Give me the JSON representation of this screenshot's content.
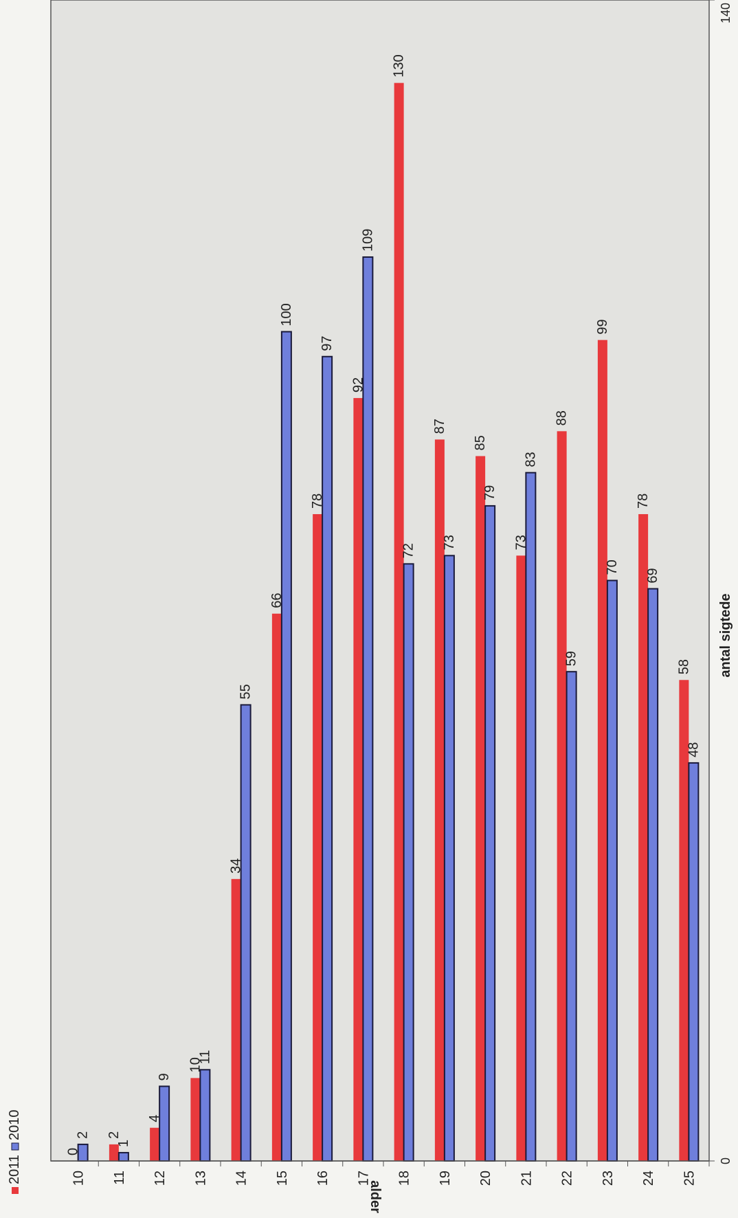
{
  "chart_data": {
    "type": "bar",
    "orientation": "horizontal",
    "categories": [
      "10",
      "11",
      "12",
      "13",
      "14",
      "15",
      "16",
      "17",
      "18",
      "19",
      "20",
      "21",
      "22",
      "23",
      "24",
      "25"
    ],
    "series": [
      {
        "name": "2011",
        "color": "#e8393c",
        "values": [
          0,
          2,
          4,
          10,
          34,
          66,
          78,
          92,
          130,
          87,
          85,
          73,
          88,
          99,
          78,
          58
        ]
      },
      {
        "name": "2010",
        "color": "#6f7fdc",
        "values": [
          2,
          1,
          9,
          11,
          55,
          100,
          97,
          109,
          72,
          73,
          79,
          83,
          59,
          70,
          69,
          48
        ]
      }
    ],
    "xlabel": "antal sigtede",
    "ylabel": "alder",
    "xlim": [
      0,
      140
    ],
    "x_ticks": [
      "0",
      "140"
    ],
    "legend": {
      "position": "top-left",
      "entries": [
        "2011",
        "2010"
      ]
    },
    "grid": false,
    "plot_background": "#e3e3e0"
  }
}
